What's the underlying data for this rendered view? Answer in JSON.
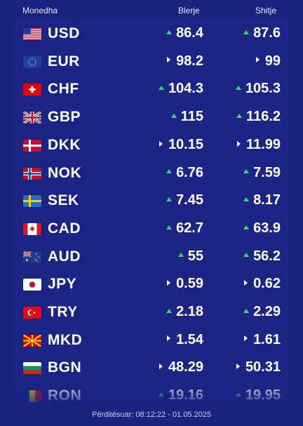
{
  "header": {
    "currency": "Monedha",
    "buy": "Blerje",
    "sell": "Shitje"
  },
  "rows": [
    {
      "code": "USD",
      "flag": "us-flag-icon",
      "buy": "86.4",
      "buy_trend": "up",
      "sell": "87.6",
      "sell_trend": "up"
    },
    {
      "code": "EUR",
      "flag": "eu-flag-icon",
      "buy": "98.2",
      "buy_trend": "flat",
      "sell": "99",
      "sell_trend": "flat"
    },
    {
      "code": "CHF",
      "flag": "ch-flag-icon",
      "buy": "104.3",
      "buy_trend": "up",
      "sell": "105.3",
      "sell_trend": "up"
    },
    {
      "code": "GBP",
      "flag": "gb-flag-icon",
      "buy": "115",
      "buy_trend": "up",
      "sell": "116.2",
      "sell_trend": "up"
    },
    {
      "code": "DKK",
      "flag": "dk-flag-icon",
      "buy": "10.15",
      "buy_trend": "flat",
      "sell": "11.99",
      "sell_trend": "flat"
    },
    {
      "code": "NOK",
      "flag": "no-flag-icon",
      "buy": "6.76",
      "buy_trend": "up",
      "sell": "7.59",
      "sell_trend": "up"
    },
    {
      "code": "SEK",
      "flag": "se-flag-icon",
      "buy": "7.45",
      "buy_trend": "up",
      "sell": "8.17",
      "sell_trend": "up"
    },
    {
      "code": "CAD",
      "flag": "ca-flag-icon",
      "buy": "62.7",
      "buy_trend": "up",
      "sell": "63.9",
      "sell_trend": "up"
    },
    {
      "code": "AUD",
      "flag": "au-flag-icon",
      "buy": "55",
      "buy_trend": "up",
      "sell": "56.2",
      "sell_trend": "up"
    },
    {
      "code": "JPY",
      "flag": "jp-flag-icon",
      "buy": "0.59",
      "buy_trend": "flat",
      "sell": "0.62",
      "sell_trend": "flat"
    },
    {
      "code": "TRY",
      "flag": "tr-flag-icon",
      "buy": "2.18",
      "buy_trend": "up",
      "sell": "2.29",
      "sell_trend": "up"
    },
    {
      "code": "MKD",
      "flag": "mk-flag-icon",
      "buy": "1.54",
      "buy_trend": "flat",
      "sell": "1.61",
      "sell_trend": "flat"
    },
    {
      "code": "BGN",
      "flag": "bg-flag-icon",
      "buy": "48.29",
      "buy_trend": "flat",
      "sell": "50.31",
      "sell_trend": "flat"
    },
    {
      "code": "RON",
      "flag": "ro-flag-icon",
      "buy": "19.16",
      "buy_trend": "up",
      "sell": "19.95",
      "sell_trend": "up"
    }
  ],
  "footer": {
    "updated": "Përditësuar: 08:12:22 - 01.05.2025"
  },
  "colors": {
    "background": "#1b2380",
    "up": "#38d96a"
  }
}
